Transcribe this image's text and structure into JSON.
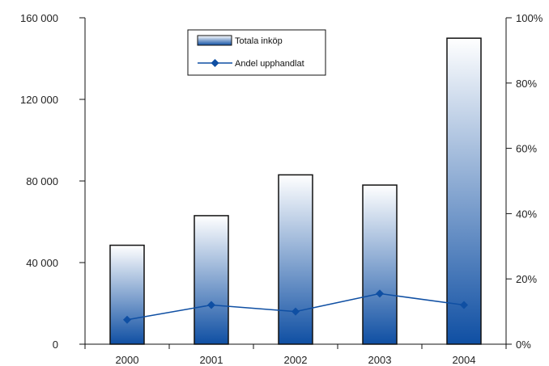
{
  "chart_data": {
    "type": "bar",
    "categories": [
      "2000",
      "2001",
      "2002",
      "2003",
      "2004"
    ],
    "series": [
      {
        "name": "Totala inköp",
        "type": "bar",
        "axis": "left",
        "values": [
          48500,
          63000,
          83000,
          78000,
          150000
        ]
      },
      {
        "name": "Andel upphandlat",
        "type": "line",
        "axis": "right",
        "values": [
          0.075,
          0.12,
          0.1,
          0.155,
          0.12
        ]
      }
    ],
    "ylim_left": [
      0,
      160000
    ],
    "yticks_left": [
      "0",
      "40 000",
      "80 000",
      "120 000",
      "160 000"
    ],
    "ylim_right": [
      0,
      1
    ],
    "yticks_right": [
      "0%",
      "20%",
      "40%",
      "60%",
      "80%",
      "100%"
    ],
    "legend_position": "top-center",
    "grid": false,
    "colors": {
      "bar_top": "#ffffff",
      "bar_bottom": "#0f4fa3",
      "line": "#0f4fa3",
      "bar_edge": "#111111"
    }
  }
}
